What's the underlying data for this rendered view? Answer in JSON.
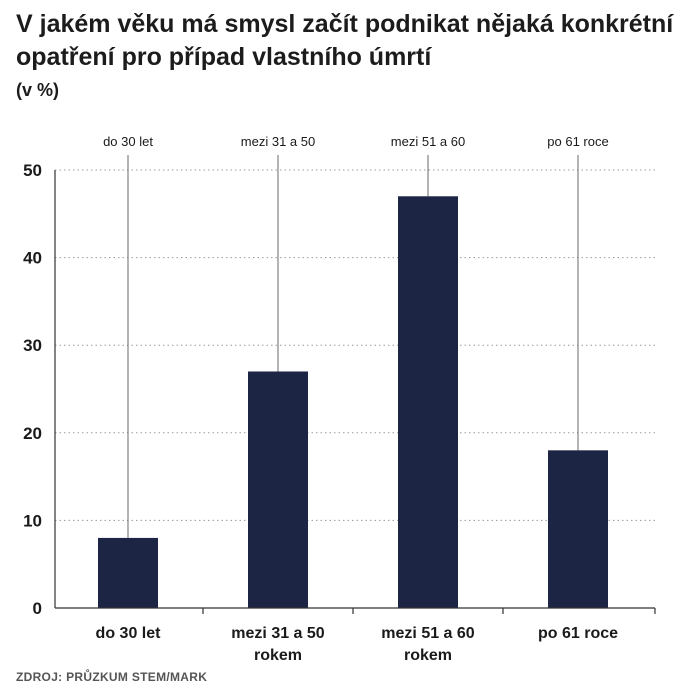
{
  "title": "V jakém věku má smysl začít podnikat nějaká konkrétní opatření pro případ vlastního úmrtí",
  "unit": "(v %)",
  "source": "ZDROJ: PRŮZKUM STEM/MARK",
  "colors": {
    "bar": "#1d2545",
    "grid": "#9a9a9a",
    "axis": "#333333"
  },
  "chart_data": {
    "type": "bar",
    "title": "V jakém věku má smysl začít podnikat nějaká konkrétní opatření pro případ vlastního úmrtí",
    "ylabel": "(v %)",
    "categories": [
      "do 30 let",
      "mezi 31 a 50 rokem",
      "mezi 51 a 60 rokem",
      "po 61 roce"
    ],
    "category_lines": [
      [
        "do 30 let"
      ],
      [
        "mezi 31 a 50",
        "rokem"
      ],
      [
        "mezi 51 a 60",
        "rokem"
      ],
      [
        "po 61 roce"
      ]
    ],
    "top_labels": [
      "do 30 let",
      "mezi 31 a 50",
      "mezi 51 a 60",
      "po 61 roce"
    ],
    "values": [
      8,
      27,
      47,
      18
    ],
    "yticks": [
      0,
      10,
      20,
      30,
      40,
      50
    ],
    "ylim": [
      0,
      50
    ],
    "grid": true
  }
}
